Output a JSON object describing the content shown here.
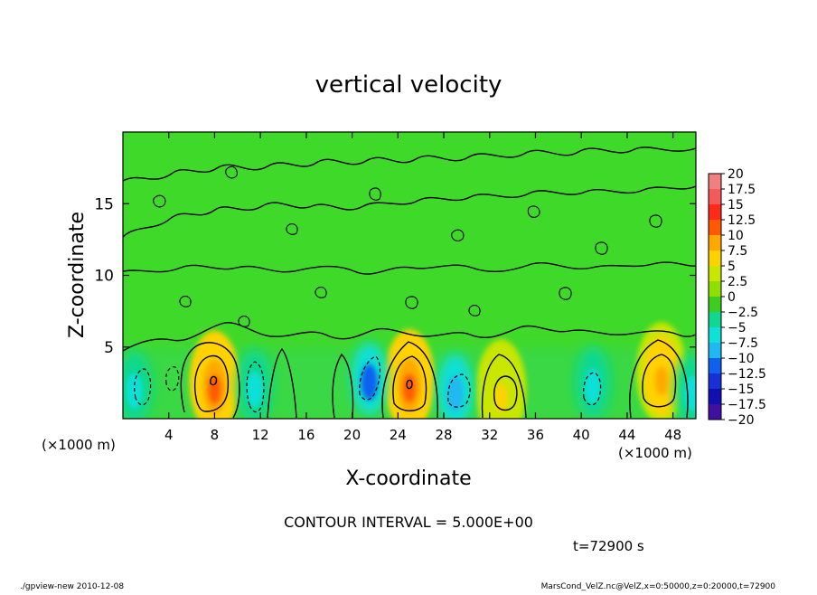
{
  "chart_data": {
    "type": "heatmap",
    "title": "vertical velocity",
    "xlabel": "X-coordinate",
    "ylabel": "Z-coordinate",
    "x_unit_label": "(×1000 m)",
    "x_unit_label_right": "(×1000 m)",
    "xlim": [
      0,
      50
    ],
    "ylim": [
      0,
      20
    ],
    "x_ticks": [
      4,
      8,
      12,
      16,
      20,
      24,
      28,
      32,
      36,
      40,
      44,
      48
    ],
    "y_ticks": [
      5,
      10,
      15
    ],
    "contour_interval_text": "CONTOUR INTERVAL = 5.000E+00",
    "time_text": "t=72900 s",
    "footer_left": "./gpview-new  2010-12-08",
    "footer_right": "MarsCond_VelZ.nc@VelZ,x=0:50000,z=0:20000,t=72900",
    "colorbar": {
      "labels": [
        "20",
        "17.5",
        "15",
        "12.5",
        "10",
        "7.5",
        "5",
        "2.5",
        "0",
        "−2.5",
        "−5",
        "−7.5",
        "−10",
        "−12.5",
        "−15",
        "−17.5",
        "−20"
      ],
      "colors": [
        "#f08080",
        "#f45a5a",
        "#ff2a1a",
        "#ff5a00",
        "#ffa800",
        "#ffd200",
        "#c8e600",
        "#8fe000",
        "#3ecc20",
        "#10d890",
        "#10e0d8",
        "#20b8f0",
        "#1060f0",
        "#1830d8",
        "#1010b0",
        "#4010a0",
        "#6020a8"
      ]
    },
    "updraft_cells": [
      {
        "x": 8.0,
        "z": 2.6,
        "peak": 12.5
      },
      {
        "x": 25.0,
        "z": 2.7,
        "peak": 12.0
      },
      {
        "x": 33.0,
        "z": 2.0,
        "peak": 7.0
      },
      {
        "x": 47.0,
        "z": 3.2,
        "peak": 10.0
      }
    ],
    "downdraft_cells": [
      {
        "x": 1.0,
        "z": 2.2,
        "trough": -6.0
      },
      {
        "x": 11.5,
        "z": 2.3,
        "trough": -5.0
      },
      {
        "x": 21.5,
        "z": 2.8,
        "trough": -10.0
      },
      {
        "x": 29.0,
        "z": 2.0,
        "trough": -6.5
      },
      {
        "x": 41.0,
        "z": 2.5,
        "trough": -5.5
      },
      {
        "x": 49.7,
        "z": 2.0,
        "trough": -6.0
      }
    ]
  }
}
